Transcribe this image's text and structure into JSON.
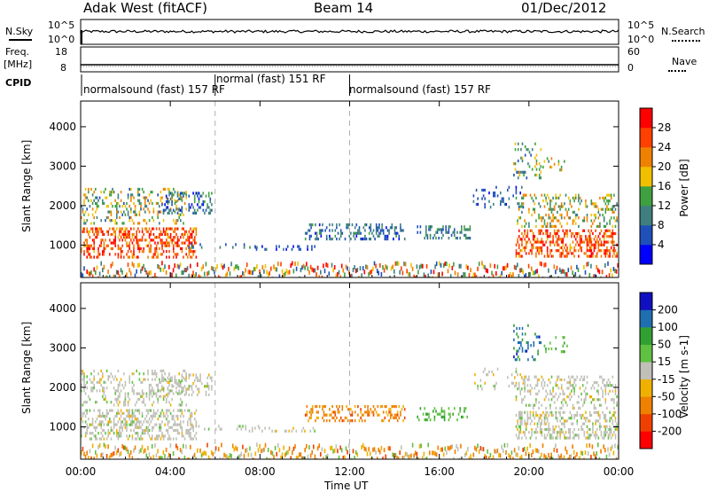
{
  "header": {
    "radar_title": "Adak West (fitACF)",
    "beam_title": "Beam 14",
    "date_title": "01/Dec/2012"
  },
  "noise_panel": {
    "left_label": "N.Sky",
    "left_ticks": [
      "10^5",
      "10^0"
    ],
    "right_label": "N.Search",
    "right_ticks": [
      "10^5",
      "10^0"
    ]
  },
  "freq_panel": {
    "left_label_top": "Freq.",
    "left_label_units": "[MHz]",
    "left_ticks": [
      "18",
      "8"
    ],
    "right_label": "Nave",
    "right_ticks": [
      "60",
      "0"
    ]
  },
  "cpid_panel": {
    "label": "CPID",
    "segments": [
      "normalsound (fast) 157 RF",
      "normal (fast) 151 RF",
      "normalsound (fast) 157 RF"
    ]
  },
  "chart_data": [
    {
      "type": "heatmap",
      "title": "Power",
      "xlabel": "Time UT",
      "ylabel": "Slant Range [km]",
      "x_ticks": [
        "00:00",
        "04:00",
        "08:00",
        "12:00",
        "16:00",
        "20:00",
        "00:00"
      ],
      "y_ticks": [
        "1000",
        "2000",
        "3000",
        "4000"
      ],
      "ylim": [
        180,
        4650
      ],
      "colorbar_label": "Power [dB]",
      "colorbar_ticks": [
        "4",
        "8",
        "12",
        "16",
        "20",
        "24",
        "28"
      ],
      "colorbar_colors": [
        "#0000ff",
        "#1f4fb8",
        "#3f7f7f",
        "#3fa03f",
        "#f0c000",
        "#f08000",
        "#ff4000",
        "#ff0000"
      ],
      "dashed_time_markers": [
        "06:00",
        "12:00"
      ]
    },
    {
      "type": "heatmap",
      "title": "Velocity",
      "xlabel": "Time UT",
      "ylabel": "Slant Range [km]",
      "x_ticks": [
        "00:00",
        "04:00",
        "08:00",
        "12:00",
        "16:00",
        "20:00",
        "00:00"
      ],
      "y_ticks": [
        "1000",
        "2000",
        "3000",
        "4000"
      ],
      "ylim": [
        180,
        4650
      ],
      "colorbar_label": "Velocity [m s-1]",
      "colorbar_ticks": [
        "200",
        "100",
        "50",
        "15",
        "-15",
        "-50",
        "-100",
        "-200"
      ],
      "colorbar_colors": [
        "#1010c0",
        "#1f6fb0",
        "#30a030",
        "#60c040",
        "#c0c0b8",
        "#f0b000",
        "#f08000",
        "#f04000",
        "#ff0000"
      ],
      "dashed_time_markers": [
        "06:00",
        "12:00"
      ]
    }
  ],
  "x_axis": {
    "label": "Time UT",
    "ticks": [
      "00:00",
      "04:00",
      "08:00",
      "12:00",
      "16:00",
      "20:00",
      "00:00"
    ]
  }
}
